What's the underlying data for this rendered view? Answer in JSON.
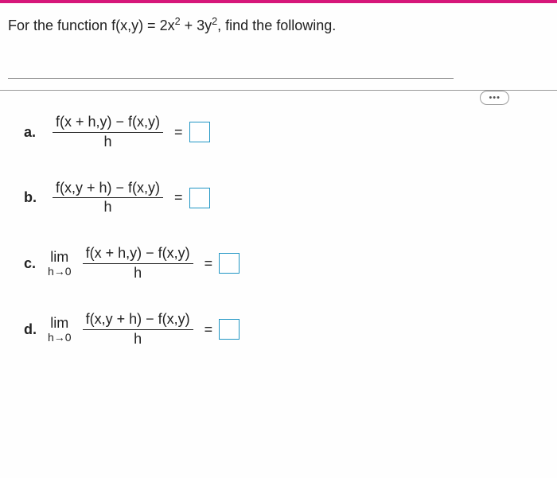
{
  "colors": {
    "accent_bar": "#d6177a",
    "background_outer": "#d6d5d0",
    "background_inner": "#fefefe",
    "text": "#222222",
    "box_border": "#2196c4",
    "divider": "#888888"
  },
  "question": {
    "prefix": "For the function f(x,y) = 2x",
    "sup1": "2",
    "mid": " + 3y",
    "sup2": "2",
    "suffix": ", find the following."
  },
  "ellipsis": "•••",
  "parts": {
    "a": {
      "label": "a.",
      "numerator": "f(x + h,y) − f(x,y)",
      "denominator": "h",
      "has_limit": false
    },
    "b": {
      "label": "b.",
      "numerator": "f(x,y + h) − f(x,y)",
      "denominator": "h",
      "has_limit": false
    },
    "c": {
      "label": "c.",
      "numerator": "f(x + h,y) − f(x,y)",
      "denominator": "h",
      "has_limit": true,
      "lim_top": "lim",
      "lim_bot": "h→0"
    },
    "d": {
      "label": "d.",
      "numerator": "f(x,y + h) − f(x,y)",
      "denominator": "h",
      "has_limit": true,
      "lim_top": "lim",
      "lim_bot": "h→0"
    }
  },
  "equals": "="
}
